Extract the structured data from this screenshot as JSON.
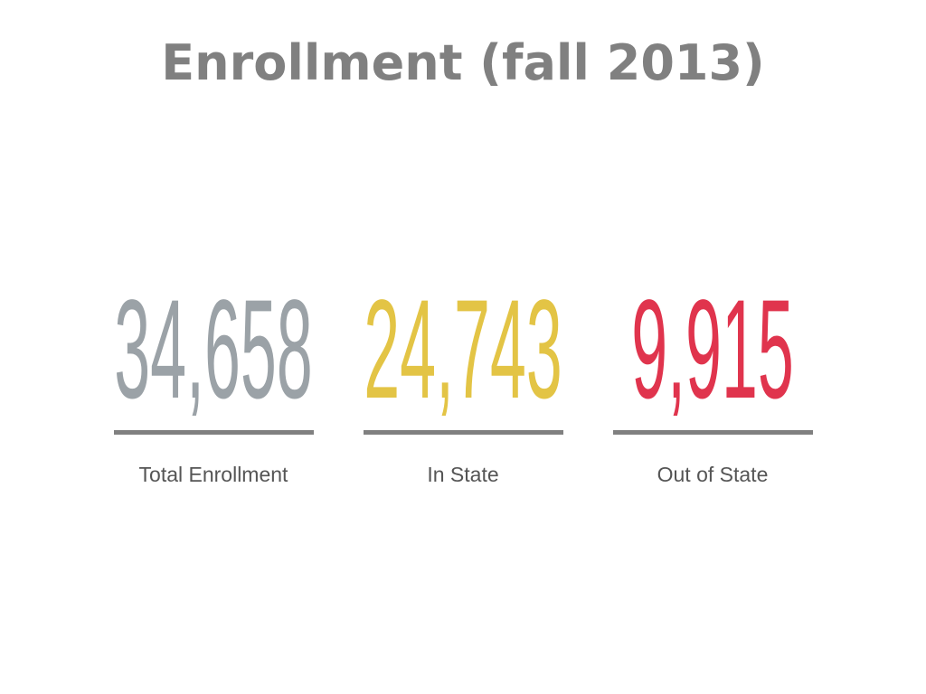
{
  "title": "Enrollment (fall 2013)",
  "stats": [
    {
      "value": "34,658",
      "label": "Total Enrollment",
      "color": "#9ba2a7"
    },
    {
      "value": "24,743",
      "label": "In State",
      "color": "#e3c445"
    },
    {
      "value": "9,915",
      "label": "Out of State",
      "color": "#e0344d"
    }
  ]
}
